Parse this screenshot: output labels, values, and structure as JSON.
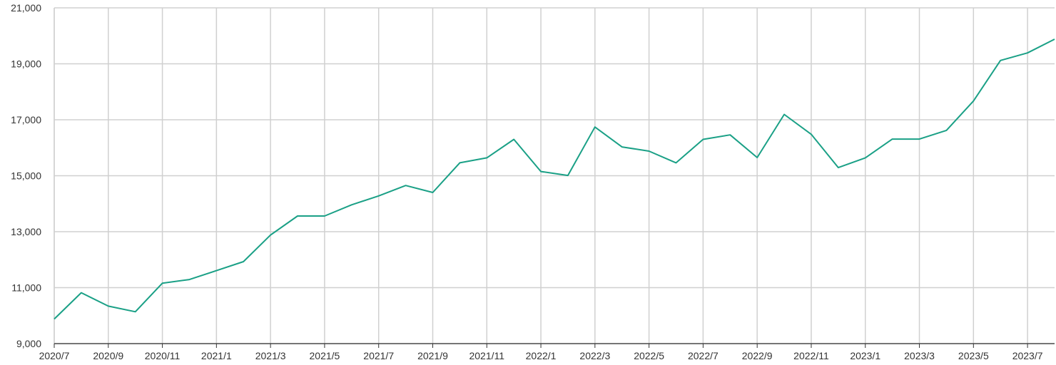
{
  "colors": {
    "series": "#1aa086",
    "grid": "#d0d0d0",
    "axis": "#333333",
    "background": "#ffffff"
  },
  "chart_data": {
    "type": "line",
    "title": "",
    "xlabel": "",
    "ylabel": "",
    "grid": true,
    "legend": "none",
    "ylim": [
      9000,
      21000
    ],
    "y_ticks": [
      "9,000",
      "11,000",
      "13,000",
      "15,000",
      "17,000",
      "19,000",
      "21,000"
    ],
    "x_ticks": [
      "2020/7",
      "2020/9",
      "2020/11",
      "2021/1",
      "2021/3",
      "2021/5",
      "2021/7",
      "2021/9",
      "2021/11",
      "2022/1",
      "2022/3",
      "2022/5",
      "2022/7",
      "2022/9",
      "2022/11",
      "2023/1",
      "2023/3",
      "2023/5",
      "2023/7"
    ],
    "series": [
      {
        "x": [
          "2020/7",
          "2020/8",
          "2020/9",
          "2020/10",
          "2020/11",
          "2020/12",
          "2021/1",
          "2021/2",
          "2021/3",
          "2021/4",
          "2021/5",
          "2021/6",
          "2021/7",
          "2021/8",
          "2021/9",
          "2021/10",
          "2021/11",
          "2021/12",
          "2022/1",
          "2022/2",
          "2022/3",
          "2022/4",
          "2022/5",
          "2022/6",
          "2022/7",
          "2022/8",
          "2022/9",
          "2022/10",
          "2022/11",
          "2022/12",
          "2023/1",
          "2023/2",
          "2023/3",
          "2023/4",
          "2023/5",
          "2023/6",
          "2023/7",
          "2023/8"
        ],
        "values": [
          9880,
          10820,
          10340,
          10140,
          11160,
          11290,
          11610,
          11930,
          12880,
          13560,
          13560,
          13960,
          14280,
          14650,
          14400,
          15460,
          15640,
          16300,
          15150,
          15010,
          16740,
          16030,
          15880,
          15460,
          16300,
          16460,
          15650,
          17190,
          16480,
          15290,
          15640,
          16310,
          16310,
          16620,
          17670,
          19120,
          19390,
          19880
        ]
      }
    ]
  }
}
